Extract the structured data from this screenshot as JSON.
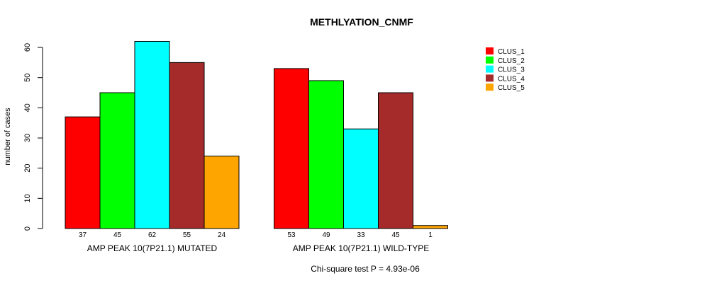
{
  "chart_data": {
    "type": "bar",
    "title": "METHLYATION_CNMF",
    "ylabel": "number of cases",
    "ylim": [
      0,
      60
    ],
    "yticks": [
      0,
      10,
      20,
      30,
      40,
      50,
      60
    ],
    "groups": [
      "AMP PEAK 10(7P21.1) MUTATED",
      "AMP PEAK 10(7P21.1) WILD-TYPE"
    ],
    "series": [
      {
        "name": "CLUS_1",
        "color": "#ff0000",
        "values": [
          37,
          53
        ]
      },
      {
        "name": "CLUS_2",
        "color": "#00ff00",
        "values": [
          45,
          49
        ]
      },
      {
        "name": "CLUS_3",
        "color": "#00ffff",
        "values": [
          62,
          33
        ]
      },
      {
        "name": "CLUS_4",
        "color": "#a52a2a",
        "values": [
          55,
          45
        ]
      },
      {
        "name": "CLUS_5",
        "color": "#ffa500",
        "values": [
          24,
          1
        ]
      }
    ],
    "legend_position": "top-right",
    "annotation": "Chi-square test P = 4.93e-06"
  }
}
